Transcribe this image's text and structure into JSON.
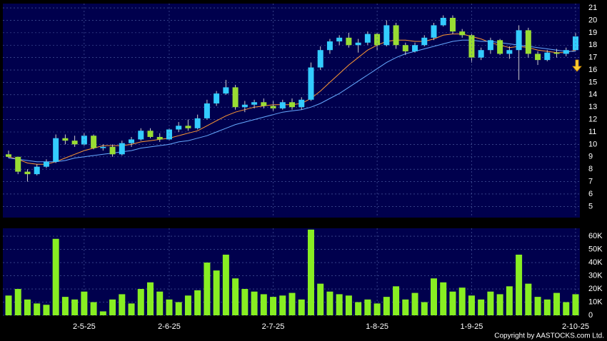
{
  "chart_data": [
    {
      "type": "candlestick",
      "up_color": "#33ccff",
      "down_color": "#99dd33",
      "open": [
        9.2,
        9.0,
        7.8,
        7.6,
        8.2,
        8.6,
        10.5,
        10.3,
        10.0,
        10.7,
        9.7,
        9.8,
        9.2,
        10.1,
        10.4,
        11.1,
        10.6,
        10.4,
        11.2,
        11.5,
        11.3,
        12.1,
        13.3,
        14.1,
        14.6,
        13.0,
        13.2,
        13.4,
        13.1,
        12.9,
        13.4,
        13.0,
        13.6,
        16.2,
        17.6,
        18.3,
        18.6,
        18.0,
        18.2,
        18.9,
        18.0,
        19.6,
        18.0,
        17.5,
        18.0,
        18.6,
        19.6,
        20.2,
        19.1,
        18.8,
        17.0,
        17.6,
        18.4,
        17.3,
        17.6,
        19.2,
        17.3,
        16.8,
        17.4,
        17.3,
        17.6
      ],
      "high": [
        9.5,
        9.0,
        8.0,
        8.4,
        8.8,
        10.8,
        10.8,
        10.7,
        10.9,
        10.8,
        10.0,
        10.0,
        10.3,
        10.6,
        11.3,
        11.3,
        10.9,
        11.3,
        11.8,
        12.0,
        12.4,
        13.6,
        14.3,
        15.2,
        14.8,
        13.5,
        13.6,
        13.7,
        13.5,
        13.6,
        13.7,
        13.8,
        16.6,
        17.9,
        18.5,
        18.8,
        19.0,
        18.5,
        19.1,
        19.0,
        20.0,
        19.8,
        18.2,
        18.2,
        18.8,
        19.8,
        20.4,
        20.4,
        19.3,
        18.9,
        17.8,
        18.6,
        18.5,
        17.9,
        19.6,
        19.4,
        17.5,
        17.6,
        17.7,
        17.8,
        19.0
      ],
      "low": [
        8.9,
        7.6,
        7.0,
        7.5,
        8.1,
        8.5,
        10.0,
        9.8,
        9.9,
        9.6,
        9.5,
        9.0,
        9.1,
        9.8,
        10.3,
        10.5,
        10.2,
        10.3,
        11.0,
        11.1,
        11.2,
        12.0,
        13.1,
        14.0,
        12.8,
        12.6,
        12.9,
        12.9,
        12.7,
        12.8,
        12.8,
        12.8,
        13.5,
        16.0,
        17.3,
        18.0,
        17.8,
        17.4,
        18.0,
        17.6,
        17.9,
        17.7,
        17.2,
        17.4,
        17.9,
        18.4,
        19.5,
        18.9,
        18.6,
        16.6,
        16.8,
        17.3,
        17.2,
        16.9,
        15.2,
        17.0,
        16.4,
        16.7,
        17.0,
        17.1,
        17.5
      ],
      "close": [
        9.0,
        7.8,
        7.6,
        8.2,
        8.6,
        10.5,
        10.3,
        10.0,
        10.7,
        9.7,
        9.8,
        9.2,
        10.1,
        10.4,
        11.1,
        10.6,
        10.4,
        11.2,
        11.5,
        11.3,
        12.1,
        13.3,
        14.1,
        14.6,
        13.0,
        13.2,
        13.4,
        13.1,
        12.9,
        13.4,
        13.0,
        13.6,
        16.2,
        17.6,
        18.3,
        18.6,
        18.0,
        18.2,
        18.9,
        18.0,
        19.6,
        18.0,
        17.5,
        18.0,
        18.6,
        19.6,
        20.2,
        19.1,
        18.8,
        17.0,
        17.6,
        18.4,
        17.3,
        17.6,
        19.2,
        17.3,
        16.8,
        17.4,
        17.3,
        17.6,
        18.7
      ],
      "lines": [
        {
          "color": "#ff9933",
          "values": [
            9.0,
            8.8,
            8.5,
            8.4,
            8.4,
            8.6,
            8.9,
            9.2,
            9.5,
            9.7,
            9.9,
            9.9,
            9.9,
            10.0,
            10.2,
            10.3,
            10.4,
            10.5,
            10.7,
            10.9,
            11.1,
            11.5,
            11.9,
            12.3,
            12.6,
            12.8,
            13.0,
            13.1,
            13.2,
            13.2,
            13.2,
            13.3,
            13.7,
            14.3,
            15.0,
            15.7,
            16.4,
            17.0,
            17.6,
            18.0,
            18.3,
            18.4,
            18.4,
            18.3,
            18.3,
            18.5,
            18.8,
            18.9,
            18.9,
            18.7,
            18.5,
            18.2,
            18.0,
            17.8,
            17.9,
            17.8,
            17.6,
            17.5,
            17.4,
            17.4,
            17.6
          ]
        },
        {
          "color": "#66aaff",
          "values": [
            8.9,
            8.8,
            8.7,
            8.6,
            8.6,
            8.6,
            8.7,
            8.9,
            9.0,
            9.1,
            9.2,
            9.3,
            9.4,
            9.5,
            9.7,
            9.8,
            9.9,
            10.0,
            10.2,
            10.3,
            10.5,
            10.7,
            11.0,
            11.3,
            11.6,
            11.8,
            12.0,
            12.2,
            12.4,
            12.6,
            12.7,
            12.8,
            13.0,
            13.3,
            13.7,
            14.1,
            14.6,
            15.1,
            15.6,
            16.1,
            16.6,
            17.0,
            17.3,
            17.5,
            17.7,
            17.9,
            18.1,
            18.3,
            18.4,
            18.4,
            18.3,
            18.3,
            18.2,
            18.1,
            18.0,
            17.9,
            17.8,
            17.7,
            17.6,
            17.5,
            17.5
          ]
        }
      ],
      "ylim": [
        4.1,
        21.35
      ],
      "yticks": [
        5,
        6,
        7,
        8,
        9,
        10,
        11,
        12,
        13,
        14,
        15,
        16,
        17,
        18,
        19,
        20,
        21
      ],
      "grid": true
    },
    {
      "type": "bar",
      "color": "#88ee22",
      "categories": [
        null,
        null,
        null,
        null,
        null,
        null,
        null,
        null,
        "2-5-25",
        null,
        null,
        null,
        null,
        null,
        null,
        null,
        null,
        "2-6-25",
        null,
        null,
        null,
        null,
        null,
        null,
        null,
        null,
        null,
        null,
        "2-7-25",
        null,
        null,
        null,
        null,
        null,
        null,
        null,
        null,
        null,
        null,
        "1-8-25",
        null,
        null,
        null,
        null,
        null,
        null,
        null,
        null,
        null,
        "1-9-25",
        null,
        null,
        null,
        null,
        null,
        null,
        null,
        null,
        null,
        null,
        "2-10-25"
      ],
      "values": [
        15000,
        20000,
        12000,
        9000,
        8000,
        58000,
        14000,
        12000,
        18000,
        10000,
        3000,
        12000,
        16000,
        9000,
        20000,
        25000,
        18000,
        12000,
        10000,
        15000,
        19000,
        40000,
        34000,
        46000,
        28000,
        20000,
        18000,
        16000,
        14000,
        15000,
        17000,
        12000,
        65000,
        24000,
        18000,
        16000,
        15000,
        10000,
        12000,
        9000,
        14000,
        22000,
        12000,
        17000,
        10000,
        28000,
        25000,
        18000,
        21000,
        15000,
        12000,
        18000,
        16000,
        22000,
        46000,
        24000,
        14000,
        12000,
        17000,
        10000,
        16000
      ],
      "ylim": [
        0,
        66000
      ],
      "yticks": [
        0,
        {
          "value": 10000,
          "label": "10K"
        },
        {
          "value": 20000,
          "label": "20K"
        },
        {
          "value": 30000,
          "label": "30K"
        },
        {
          "value": 40000,
          "label": "40K"
        },
        {
          "value": 50000,
          "label": "50K"
        },
        {
          "value": 60000,
          "label": "60K"
        }
      ],
      "grid": true
    }
  ],
  "copyright": "Copyright by AASTOCKS.com Ltd."
}
